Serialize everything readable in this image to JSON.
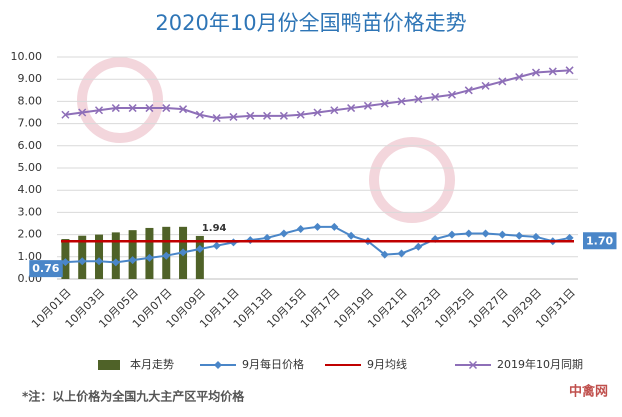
{
  "chart_data": {
    "type": "combo",
    "title": "2020年10月份全国鸭苗价格走势",
    "categories": [
      "10月01日",
      null,
      "10月03日",
      null,
      "10月05日",
      null,
      "10月07日",
      null,
      "10月09日",
      null,
      "10月11日",
      null,
      "10月13日",
      null,
      "10月15日",
      null,
      "10月17日",
      null,
      "10月19日",
      null,
      "10月21日",
      null,
      "10月23日",
      null,
      "10月25日",
      null,
      "10月27日",
      null,
      "10月29日",
      null,
      "10月31日"
    ],
    "ylim": [
      0,
      10
    ],
    "yticks": [
      {
        "value": 0,
        "label": "0.00"
      },
      {
        "value": 1,
        "label": "1.00"
      },
      {
        "value": 2,
        "label": "2.00"
      },
      {
        "value": 3,
        "label": "3.00"
      },
      {
        "value": 4,
        "label": "4.00"
      },
      {
        "value": 5,
        "label": "5.00"
      },
      {
        "value": 6,
        "label": "6.00"
      },
      {
        "value": 7,
        "label": "7.00"
      },
      {
        "value": 8,
        "label": "8.00"
      },
      {
        "value": 9,
        "label": "9.00"
      },
      {
        "value": 10,
        "label": "10.00"
      }
    ],
    "grid": true,
    "series": [
      {
        "name": "本月走势",
        "kind": "bar",
        "color": "#4f6228",
        "values": [
          1.8,
          1.95,
          2.0,
          2.1,
          2.2,
          2.3,
          2.35,
          2.35,
          1.94,
          null,
          null,
          null,
          null,
          null,
          null,
          null,
          null,
          null,
          null,
          null,
          null,
          null,
          null,
          null,
          null,
          null,
          null,
          null,
          null,
          null,
          null
        ],
        "labeled": [
          8
        ]
      },
      {
        "name": "9月每日价格",
        "kind": "line",
        "marker": "diamond",
        "color": "#4a86c8",
        "values": [
          0.76,
          0.8,
          0.8,
          0.75,
          0.85,
          0.95,
          1.05,
          1.2,
          1.35,
          1.5,
          1.65,
          1.75,
          1.85,
          2.05,
          2.25,
          2.35,
          2.35,
          1.95,
          1.7,
          1.1,
          1.15,
          1.45,
          1.8,
          2.0,
          2.05,
          2.05,
          2.0,
          1.95,
          1.9,
          1.7,
          1.85
        ],
        "labeled": [
          0
        ]
      },
      {
        "name": "9月均线",
        "kind": "hline",
        "color": "#c00000",
        "value": 1.7,
        "value_label": "1.70"
      },
      {
        "name": "2019年10月同期",
        "kind": "line",
        "marker": "x",
        "color": "#8e6fb8",
        "values": [
          7.4,
          7.5,
          7.6,
          7.7,
          7.7,
          7.7,
          7.7,
          7.65,
          7.4,
          7.25,
          7.3,
          7.35,
          7.35,
          7.35,
          7.4,
          7.5,
          7.6,
          7.7,
          7.8,
          7.9,
          8.0,
          8.1,
          8.2,
          8.3,
          8.5,
          8.7,
          8.9,
          9.1,
          9.3,
          9.35,
          9.4
        ]
      }
    ]
  },
  "footnote": "*注：以上价格为全国九大主产区平均价格",
  "watermark": "中禽网"
}
